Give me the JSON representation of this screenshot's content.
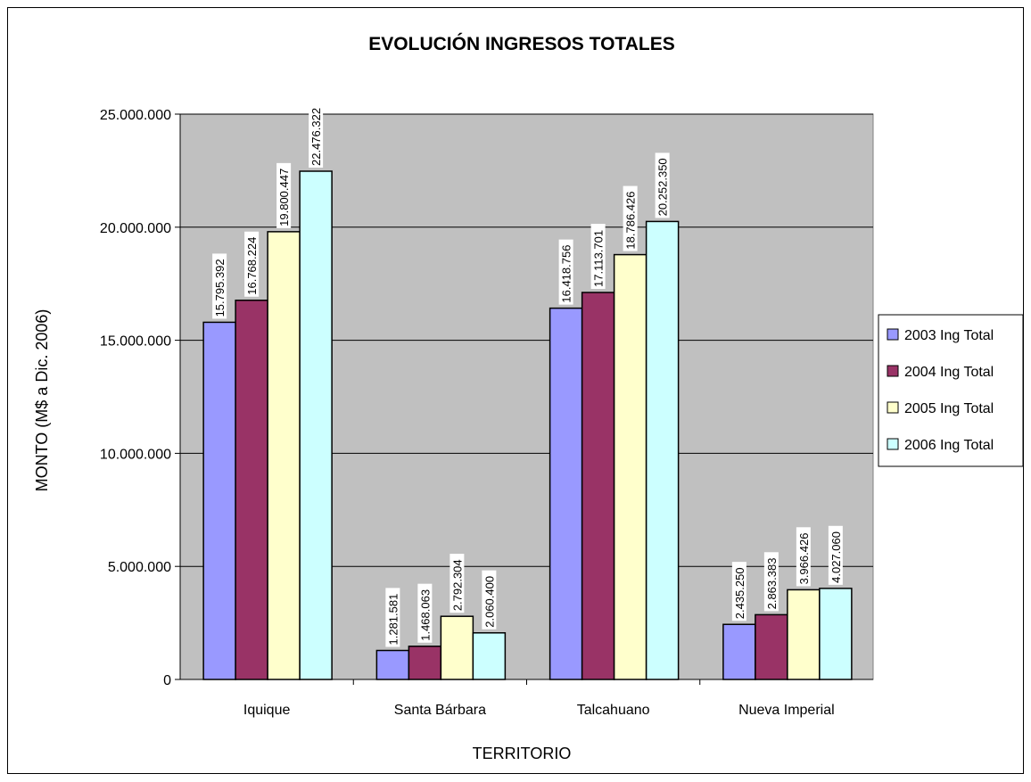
{
  "chart_data": {
    "type": "bar",
    "title": "EVOLUCIÓN INGRESOS TOTALES",
    "xlabel": "TERRITORIO",
    "ylabel": "MONTO (M$ a Dic. 2006)",
    "categories": [
      "Iquique",
      "Santa Bárbara",
      "Talcahuano",
      "Nueva Imperial"
    ],
    "ylim": [
      0,
      25000000
    ],
    "yticks": [
      0,
      5000000,
      10000000,
      15000000,
      20000000,
      25000000
    ],
    "ytick_labels": [
      "0",
      "5.000.000",
      "10.000.000",
      "15.000.000",
      "20.000.000",
      "25.000.000"
    ],
    "grid": true,
    "legend_position": "right",
    "series": [
      {
        "name": "2003 Ing Total",
        "color": "#9999ff",
        "values": [
          15795392,
          1281581,
          16418756,
          2435250
        ],
        "labels": [
          "15.795.392",
          "1.281.581",
          "16.418.756",
          "2.435.250"
        ]
      },
      {
        "name": "2004 Ing Total",
        "color": "#993366",
        "values": [
          16768224,
          1468063,
          17113701,
          2863383
        ],
        "labels": [
          "16.768.224",
          "1.468.063",
          "17.113.701",
          "2.863.383"
        ]
      },
      {
        "name": "2005 Ing Total",
        "color": "#ffffcc",
        "values": [
          19800447,
          2792304,
          18786426,
          3966426
        ],
        "labels": [
          "19.800.447",
          "2.792.304",
          "18.786.426",
          "3.966.426"
        ]
      },
      {
        "name": "2006 Ing Total",
        "color": "#ccffff",
        "values": [
          22476322,
          2060400,
          20252350,
          4027060
        ],
        "labels": [
          "22.476.322",
          "2.060.400",
          "20.252.350",
          "4.027.060"
        ]
      }
    ],
    "colors": {
      "plot_background": "#c0c0c0",
      "gridline": "#000000",
      "bar_outline": "#000000"
    }
  }
}
